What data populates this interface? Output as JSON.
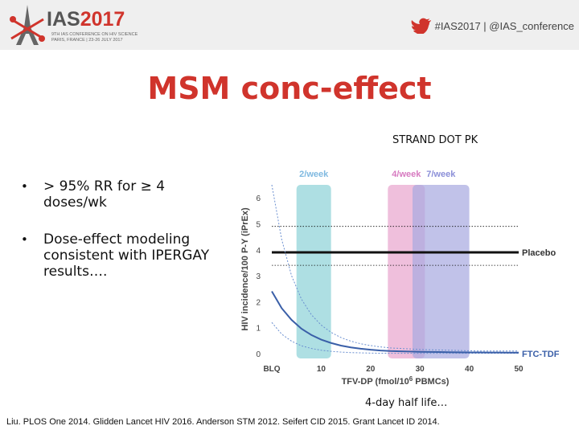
{
  "header": {
    "logo_main_prefix": "IAS",
    "logo_main_year": "2017",
    "logo_sub1": "9TH IAS CONFERENCE ON HIV SCIENCE",
    "logo_sub2": "PARIS, FRANCE | 23-26 JULY 2017",
    "hashtag": "#IAS2017 | @IAS_conference",
    "icon": "bird-icon"
  },
  "slide": {
    "title": "MSM conc-effect",
    "subtitle": "STRAND DOT PK",
    "bullets": [
      "> 95% RR for ≥ 4 doses/wk",
      "Dose-effect modeling consistent with IPERGAY results…."
    ],
    "bullet_marker": "•",
    "half_life_note": "4-day half life…",
    "citation": "Liu. PLOS One 2014. Glidden Lancet HIV 2016. Anderson STM 2012. Seifert CID 2015. Grant Lancet ID 2014."
  },
  "chart_data": {
    "type": "line",
    "title": "",
    "xlabel": "TFV-DP (fmol/10",
    "xlabel_sup": "6",
    "xlabel_end": " PBMCs)",
    "ylabel": "HIV incidence/100 P-Y (iPrEx)",
    "xlim": [
      0,
      50
    ],
    "ylim": [
      0,
      6.5
    ],
    "x_ticks": [
      {
        "value": 0,
        "label": "BLQ"
      },
      {
        "value": 10,
        "label": "10"
      },
      {
        "value": 20,
        "label": "20"
      },
      {
        "value": 30,
        "label": "30"
      },
      {
        "value": 40,
        "label": "40"
      },
      {
        "value": 50,
        "label": "50"
      }
    ],
    "y_ticks": [
      0,
      1,
      2,
      3,
      4,
      5,
      6
    ],
    "bands": [
      {
        "label": "2/week",
        "x_start": 5,
        "x_end": 12,
        "color": "#8fd3d8"
      },
      {
        "label": "4/week",
        "x_start": 23.5,
        "x_end": 31,
        "color": "#e9a6cf"
      },
      {
        "label": "7/week",
        "x_start": 28.5,
        "x_end": 40,
        "color": "#a9abe0"
      }
    ],
    "band_label_colors": [
      "#7fb9e0",
      "#d77ac0",
      "#8b8fd8"
    ],
    "placebo": {
      "label": "Placebo",
      "value": 3.9,
      "ci": [
        3.4,
        4.9
      ]
    },
    "ftc_tdf": {
      "label": "FTC-TDF",
      "x": [
        0,
        2,
        4,
        6,
        8,
        10,
        12,
        14,
        16,
        18,
        20,
        22,
        24,
        26,
        28,
        30,
        32,
        34,
        36,
        38,
        40,
        42,
        44,
        46,
        48,
        50
      ],
      "y": [
        2.4,
        1.75,
        1.3,
        0.96,
        0.72,
        0.54,
        0.41,
        0.31,
        0.24,
        0.19,
        0.15,
        0.12,
        0.1,
        0.09,
        0.08,
        0.07,
        0.065,
        0.06,
        0.055,
        0.05,
        0.048,
        0.046,
        0.044,
        0.042,
        0.04,
        0.04
      ],
      "ci_upper": [
        6.5,
        4.4,
        3.0,
        2.1,
        1.5,
        1.1,
        0.82,
        0.62,
        0.48,
        0.38,
        0.31,
        0.26,
        0.22,
        0.2,
        0.18,
        0.16,
        0.15,
        0.14,
        0.13,
        0.12,
        0.11,
        0.1,
        0.1,
        0.1,
        0.1,
        0.1
      ],
      "ci_lower": [
        1.2,
        0.75,
        0.48,
        0.3,
        0.2,
        0.13,
        0.09,
        0.06,
        0.04,
        0.03,
        0.02,
        0.015,
        0.012,
        0.01,
        0.01,
        0.01,
        0.01,
        0.01,
        0.01,
        0.01,
        0.01,
        0.01,
        0.01,
        0.01,
        0.01,
        0.01
      ]
    },
    "colors": {
      "line": "#3a5fa8",
      "ci": "#6a8fd0",
      "placebo": "#111111",
      "axis_text": "#444444"
    }
  }
}
